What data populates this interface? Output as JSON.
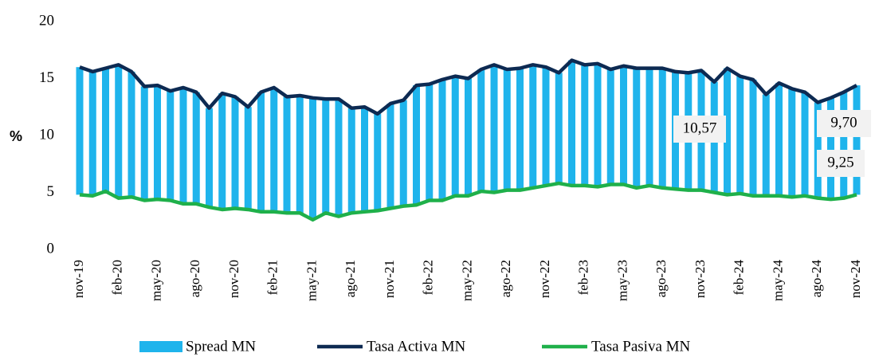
{
  "chart_data": {
    "type": "bar",
    "y_label": "%",
    "categories": [
      "nov-19",
      null,
      null,
      "feb-20",
      null,
      null,
      "may-20",
      null,
      null,
      "ago-20",
      null,
      null,
      "nov-20",
      null,
      null,
      "feb-21",
      null,
      null,
      "may-21",
      null,
      null,
      "ago-21",
      null,
      null,
      "nov-21",
      null,
      null,
      "feb-22",
      null,
      null,
      "may-22",
      null,
      null,
      "ago-22",
      null,
      null,
      "nov-22",
      null,
      null,
      "feb-23",
      null,
      null,
      "may-23",
      null,
      null,
      "ago-23",
      null,
      null,
      "nov-23",
      null,
      null,
      "feb-24",
      null,
      null,
      "may-24",
      null,
      null,
      "ago-24",
      null,
      null,
      "nov-24"
    ],
    "series": [
      {
        "name": "Spread MN",
        "type": "bar",
        "color": "#1fb4ec",
        "values": [
          11.2,
          10.9,
          10.8,
          11.7,
          11.0,
          10.0,
          10.0,
          9.6,
          10.2,
          9.8,
          8.7,
          10.2,
          9.8,
          9.0,
          10.5,
          10.9,
          10.2,
          10.3,
          10.7,
          10.0,
          10.3,
          9.2,
          9.2,
          8.5,
          9.2,
          9.3,
          10.5,
          10.2,
          10.6,
          10.5,
          10.3,
          10.7,
          11.2,
          10.6,
          10.7,
          10.8,
          10.4,
          9.7,
          11.0,
          10.6,
          10.8,
          10.1,
          10.4,
          10.5,
          10.3,
          10.5,
          10.3,
          10.3,
          10.5,
          9.7,
          11.1,
          10.3,
          10.2,
          8.9,
          9.9,
          9.5,
          9.1,
          8.4,
          8.9,
          9.3,
          9.6
        ]
      },
      {
        "name": "Tasa Activa MN",
        "type": "line",
        "color": "#0d2a52",
        "values": [
          16.0,
          15.6,
          15.9,
          16.2,
          15.6,
          14.3,
          14.4,
          13.9,
          14.2,
          13.8,
          12.4,
          13.7,
          13.4,
          12.5,
          13.8,
          14.2,
          13.4,
          13.5,
          13.3,
          13.2,
          13.2,
          12.4,
          12.5,
          11.9,
          12.8,
          13.1,
          14.4,
          14.5,
          14.9,
          15.2,
          15.0,
          15.8,
          16.2,
          15.8,
          15.9,
          16.2,
          16.0,
          15.5,
          16.6,
          16.2,
          16.3,
          15.8,
          16.1,
          15.9,
          15.9,
          15.9,
          15.6,
          15.5,
          15.7,
          14.7,
          15.9,
          15.2,
          14.9,
          13.6,
          14.6,
          14.1,
          13.8,
          12.9,
          13.3,
          13.8,
          14.4
        ]
      },
      {
        "name": "Tasa Pasiva MN",
        "type": "line",
        "color": "#1fb04a",
        "values": [
          4.8,
          4.7,
          5.1,
          4.5,
          4.6,
          4.3,
          4.4,
          4.3,
          4.0,
          4.0,
          3.7,
          3.5,
          3.6,
          3.5,
          3.3,
          3.3,
          3.2,
          3.2,
          2.6,
          3.2,
          2.9,
          3.2,
          3.3,
          3.4,
          3.6,
          3.8,
          3.9,
          4.3,
          4.3,
          4.7,
          4.7,
          5.1,
          5.0,
          5.2,
          5.2,
          5.4,
          5.6,
          5.8,
          5.6,
          5.6,
          5.5,
          5.7,
          5.7,
          5.4,
          5.6,
          5.4,
          5.3,
          5.2,
          5.2,
          5.0,
          4.8,
          4.9,
          4.7,
          4.7,
          4.7,
          4.6,
          4.7,
          4.5,
          4.4,
          4.5,
          4.8
        ]
      }
    ],
    "annotations": [
      "10,57",
      "9,70",
      "9,25"
    ],
    "ylim": [
      0,
      20
    ],
    "yticks": [
      0,
      5,
      10,
      15,
      20
    ],
    "grid": false,
    "legend": "bottom"
  }
}
